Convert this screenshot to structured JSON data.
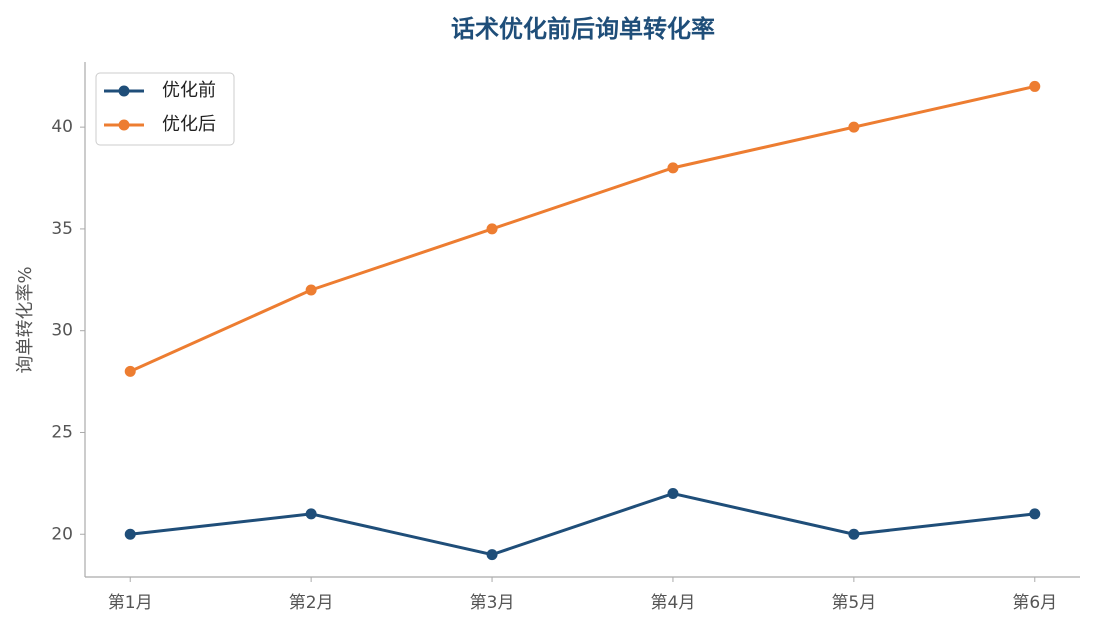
{
  "chart_data": {
    "type": "line",
    "title": "话术优化前后询单转化率",
    "y_label": "询单转化率%",
    "categories": [
      "第1月",
      "第2月",
      "第3月",
      "第4月",
      "第5月",
      "第6月"
    ],
    "series": [
      {
        "name": "优化前",
        "color": "#1f4e79",
        "values": [
          20,
          21,
          19,
          22,
          20,
          21
        ]
      },
      {
        "name": "优化后",
        "color": "#ed7d31",
        "values": [
          28,
          32,
          35,
          38,
          40,
          42
        ]
      }
    ],
    "ylim": [
      17.9,
      43.2
    ],
    "yticks": [
      20,
      25,
      30,
      35,
      40
    ],
    "grid": false,
    "legend": "upper left"
  }
}
